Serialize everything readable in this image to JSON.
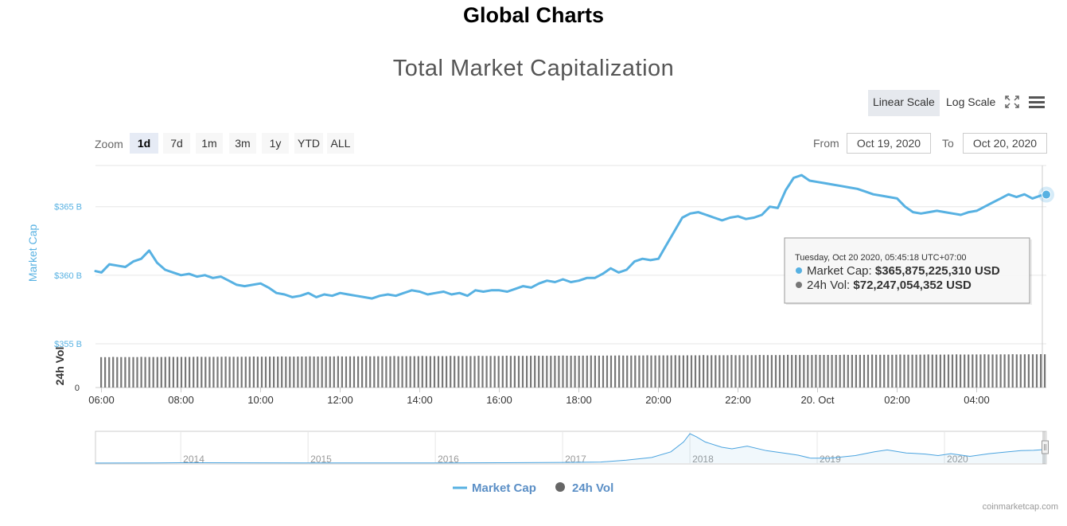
{
  "page": {
    "title": "Global Charts",
    "credit": "coinmarketcap.com"
  },
  "chart": {
    "title": "Total Market Capitalization",
    "scale_buttons": {
      "linear": "Linear Scale",
      "log": "Log Scale"
    },
    "zoom": {
      "label": "Zoom",
      "options": [
        "1d",
        "7d",
        "1m",
        "3m",
        "1y",
        "YTD",
        "ALL"
      ],
      "selected": "1d"
    },
    "range": {
      "from_label": "From",
      "from_value": "Oct 19, 2020",
      "to_label": "To",
      "to_value": "Oct 20, 2020"
    },
    "tooltip": {
      "date": "Tuesday, Oct 20 2020, 05:45:18 UTC+07:00",
      "series1_label": "Market Cap: ",
      "series1_value": "$365,875,225,310 USD",
      "series2_label": "24h Vol: ",
      "series2_value": "$72,247,054,352 USD"
    },
    "colors": {
      "market_cap": "#57b1e2",
      "volume": "#777777",
      "navigator": "#4aa3df",
      "ink": "#333333"
    },
    "legend": [
      "Market Cap",
      "24h Vol"
    ]
  },
  "chart_data": {
    "type": "line",
    "title": "Total Market Capitalization",
    "x_ticks": [
      "06:00",
      "08:00",
      "10:00",
      "12:00",
      "14:00",
      "16:00",
      "18:00",
      "20:00",
      "22:00",
      "20. Oct",
      "02:00",
      "04:00"
    ],
    "x_tick_hours": [
      6,
      8,
      10,
      12,
      14,
      16,
      18,
      20,
      22,
      24,
      26,
      28
    ],
    "x_range_hours": [
      5.85,
      29.75
    ],
    "series": [
      {
        "name": "Market Cap",
        "axis_label": "Market Cap",
        "y_ticks": [
          "$355 B",
          "$360 B",
          "$365 B"
        ],
        "y_tick_values": [
          355,
          360,
          365
        ],
        "y_range": [
          355,
          368
        ],
        "unit": "billion USD",
        "points": [
          [
            5.85,
            360.3
          ],
          [
            6.0,
            360.2
          ],
          [
            6.2,
            360.8
          ],
          [
            6.4,
            360.7
          ],
          [
            6.6,
            360.6
          ],
          [
            6.8,
            361.0
          ],
          [
            7.0,
            361.2
          ],
          [
            7.2,
            361.8
          ],
          [
            7.4,
            360.9
          ],
          [
            7.6,
            360.4
          ],
          [
            7.8,
            360.2
          ],
          [
            8.0,
            360.0
          ],
          [
            8.2,
            360.1
          ],
          [
            8.4,
            359.9
          ],
          [
            8.6,
            360.0
          ],
          [
            8.8,
            359.8
          ],
          [
            9.0,
            359.9
          ],
          [
            9.2,
            359.6
          ],
          [
            9.4,
            359.3
          ],
          [
            9.6,
            359.2
          ],
          [
            9.8,
            359.3
          ],
          [
            10.0,
            359.4
          ],
          [
            10.2,
            359.1
          ],
          [
            10.4,
            358.7
          ],
          [
            10.6,
            358.6
          ],
          [
            10.8,
            358.4
          ],
          [
            11.0,
            358.5
          ],
          [
            11.2,
            358.7
          ],
          [
            11.4,
            358.4
          ],
          [
            11.6,
            358.6
          ],
          [
            11.8,
            358.5
          ],
          [
            12.0,
            358.7
          ],
          [
            12.2,
            358.6
          ],
          [
            12.4,
            358.5
          ],
          [
            12.6,
            358.4
          ],
          [
            12.8,
            358.3
          ],
          [
            13.0,
            358.5
          ],
          [
            13.2,
            358.6
          ],
          [
            13.4,
            358.5
          ],
          [
            13.6,
            358.7
          ],
          [
            13.8,
            358.9
          ],
          [
            14.0,
            358.8
          ],
          [
            14.2,
            358.6
          ],
          [
            14.4,
            358.7
          ],
          [
            14.6,
            358.8
          ],
          [
            14.8,
            358.6
          ],
          [
            15.0,
            358.7
          ],
          [
            15.2,
            358.5
          ],
          [
            15.4,
            358.9
          ],
          [
            15.6,
            358.8
          ],
          [
            15.8,
            358.9
          ],
          [
            16.0,
            358.9
          ],
          [
            16.2,
            358.8
          ],
          [
            16.4,
            359.0
          ],
          [
            16.6,
            359.2
          ],
          [
            16.8,
            359.1
          ],
          [
            17.0,
            359.4
          ],
          [
            17.2,
            359.6
          ],
          [
            17.4,
            359.5
          ],
          [
            17.6,
            359.7
          ],
          [
            17.8,
            359.5
          ],
          [
            18.0,
            359.6
          ],
          [
            18.2,
            359.8
          ],
          [
            18.4,
            359.8
          ],
          [
            18.6,
            360.1
          ],
          [
            18.8,
            360.5
          ],
          [
            19.0,
            360.2
          ],
          [
            19.2,
            360.4
          ],
          [
            19.4,
            361.0
          ],
          [
            19.6,
            361.2
          ],
          [
            19.8,
            361.1
          ],
          [
            20.0,
            361.2
          ],
          [
            20.2,
            362.2
          ],
          [
            20.4,
            363.2
          ],
          [
            20.6,
            364.2
          ],
          [
            20.8,
            364.5
          ],
          [
            21.0,
            364.6
          ],
          [
            21.2,
            364.4
          ],
          [
            21.4,
            364.2
          ],
          [
            21.6,
            364.0
          ],
          [
            21.8,
            364.2
          ],
          [
            22.0,
            364.3
          ],
          [
            22.2,
            364.1
          ],
          [
            22.4,
            364.2
          ],
          [
            22.6,
            364.4
          ],
          [
            22.8,
            365.0
          ],
          [
            23.0,
            364.9
          ],
          [
            23.2,
            366.2
          ],
          [
            23.4,
            367.1
          ],
          [
            23.6,
            367.3
          ],
          [
            23.8,
            366.9
          ],
          [
            24.0,
            366.8
          ],
          [
            24.2,
            366.7
          ],
          [
            24.4,
            366.6
          ],
          [
            24.6,
            366.5
          ],
          [
            24.8,
            366.4
          ],
          [
            25.0,
            366.3
          ],
          [
            25.2,
            366.1
          ],
          [
            25.4,
            365.9
          ],
          [
            25.6,
            365.8
          ],
          [
            25.8,
            365.7
          ],
          [
            26.0,
            365.6
          ],
          [
            26.2,
            365.0
          ],
          [
            26.4,
            364.6
          ],
          [
            26.6,
            364.5
          ],
          [
            26.8,
            364.6
          ],
          [
            27.0,
            364.7
          ],
          [
            27.2,
            364.6
          ],
          [
            27.4,
            364.5
          ],
          [
            27.6,
            364.4
          ],
          [
            27.8,
            364.6
          ],
          [
            28.0,
            364.7
          ],
          [
            28.2,
            365.0
          ],
          [
            28.4,
            365.3
          ],
          [
            28.6,
            365.6
          ],
          [
            28.8,
            365.9
          ],
          [
            29.0,
            365.7
          ],
          [
            29.2,
            365.9
          ],
          [
            29.4,
            365.6
          ],
          [
            29.6,
            365.8
          ],
          [
            29.75,
            365.88
          ]
        ]
      },
      {
        "name": "24h Vol",
        "axis_label": "24h Vol",
        "y_ticks": [
          "0"
        ],
        "y_tick_values": [
          0
        ],
        "y_range": [
          0,
          95
        ],
        "unit": "billion USD",
        "bar_count": 236,
        "start_value": 66,
        "end_value": 72.25,
        "last_value": 72.247
      }
    ],
    "navigator": {
      "years": [
        "2014",
        "2015",
        "2016",
        "2017",
        "2018",
        "2019",
        "2020"
      ],
      "year_positions": [
        2014,
        2015,
        2016,
        2017,
        2018,
        2019,
        2020
      ],
      "x_range_years": [
        2013.33,
        2020.8
      ],
      "y_range": [
        0,
        800
      ],
      "points": [
        [
          2013.33,
          2
        ],
        [
          2013.8,
          5
        ],
        [
          2014.0,
          10
        ],
        [
          2014.5,
          8
        ],
        [
          2015.0,
          5
        ],
        [
          2015.5,
          4
        ],
        [
          2016.0,
          6
        ],
        [
          2016.5,
          10
        ],
        [
          2017.0,
          18
        ],
        [
          2017.3,
          30
        ],
        [
          2017.5,
          80
        ],
        [
          2017.7,
          150
        ],
        [
          2017.85,
          300
        ],
        [
          2017.95,
          560
        ],
        [
          2018.0,
          780
        ],
        [
          2018.05,
          700
        ],
        [
          2018.12,
          560
        ],
        [
          2018.25,
          420
        ],
        [
          2018.33,
          380
        ],
        [
          2018.45,
          450
        ],
        [
          2018.6,
          330
        ],
        [
          2018.75,
          260
        ],
        [
          2018.85,
          210
        ],
        [
          2018.95,
          130
        ],
        [
          2019.1,
          130
        ],
        [
          2019.3,
          200
        ],
        [
          2019.45,
          300
        ],
        [
          2019.55,
          350
        ],
        [
          2019.7,
          270
        ],
        [
          2019.85,
          240
        ],
        [
          2019.95,
          200
        ],
        [
          2020.05,
          250
        ],
        [
          2020.2,
          180
        ],
        [
          2020.35,
          250
        ],
        [
          2020.5,
          300
        ],
        [
          2020.6,
          330
        ],
        [
          2020.7,
          340
        ],
        [
          2020.8,
          365
        ]
      ]
    },
    "legend": [
      "Market Cap",
      "24h Vol"
    ],
    "legend_position": "bottom-center"
  }
}
